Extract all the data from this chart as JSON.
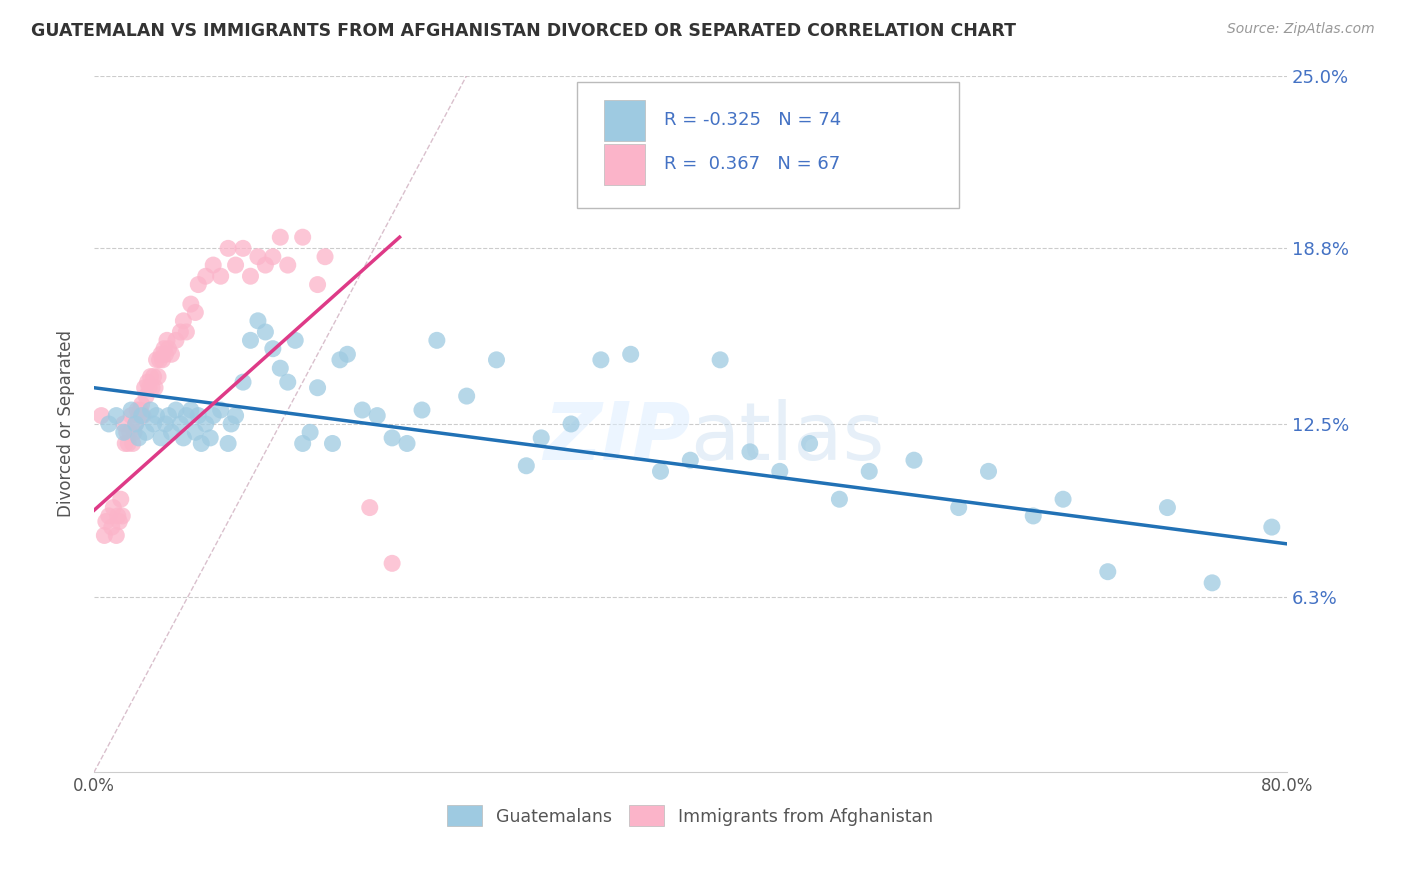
{
  "title": "GUATEMALAN VS IMMIGRANTS FROM AFGHANISTAN DIVORCED OR SEPARATED CORRELATION CHART",
  "source": "Source: ZipAtlas.com",
  "ylabel": "Divorced or Separated",
  "xmin": 0.0,
  "xmax": 0.8,
  "ymin": 0.0,
  "ymax": 0.25,
  "yticks": [
    0.063,
    0.125,
    0.188,
    0.25
  ],
  "ytick_labels": [
    "6.3%",
    "12.5%",
    "18.8%",
    "25.0%"
  ],
  "xtick_labels_pos": [
    0.0,
    0.8
  ],
  "xtick_labels": [
    "0.0%",
    "80.0%"
  ],
  "blue_color": "#9ecae1",
  "pink_color": "#fbb4c9",
  "blue_line_color": "#2171b5",
  "pink_line_color": "#de3a87",
  "blue_R": -0.325,
  "blue_N": 74,
  "pink_R": 0.367,
  "pink_N": 67,
  "legend_label_blue": "Guatemalans",
  "legend_label_pink": "Immigrants from Afghanistan",
  "watermark_zip": "ZIP",
  "watermark_atlas": "atlas",
  "blue_trend_x": [
    0.0,
    0.8
  ],
  "blue_trend_y": [
    0.138,
    0.082
  ],
  "pink_trend_x": [
    0.0,
    0.205
  ],
  "pink_trend_y": [
    0.094,
    0.192
  ],
  "ref_line_x": [
    0.0,
    0.25
  ],
  "ref_line_y": [
    0.0,
    0.25
  ],
  "blue_scatter_x": [
    0.01,
    0.015,
    0.02,
    0.025,
    0.028,
    0.03,
    0.032,
    0.035,
    0.038,
    0.04,
    0.042,
    0.045,
    0.048,
    0.05,
    0.052,
    0.055,
    0.058,
    0.06,
    0.062,
    0.065,
    0.068,
    0.07,
    0.072,
    0.075,
    0.078,
    0.08,
    0.085,
    0.09,
    0.092,
    0.095,
    0.1,
    0.105,
    0.11,
    0.115,
    0.12,
    0.125,
    0.13,
    0.135,
    0.14,
    0.145,
    0.15,
    0.16,
    0.165,
    0.17,
    0.18,
    0.19,
    0.2,
    0.21,
    0.22,
    0.23,
    0.25,
    0.27,
    0.29,
    0.3,
    0.32,
    0.34,
    0.36,
    0.38,
    0.4,
    0.42,
    0.44,
    0.46,
    0.48,
    0.5,
    0.52,
    0.55,
    0.58,
    0.6,
    0.63,
    0.65,
    0.68,
    0.72,
    0.75,
    0.79
  ],
  "blue_scatter_y": [
    0.125,
    0.128,
    0.122,
    0.13,
    0.125,
    0.12,
    0.128,
    0.122,
    0.13,
    0.125,
    0.128,
    0.12,
    0.125,
    0.128,
    0.122,
    0.13,
    0.125,
    0.12,
    0.128,
    0.13,
    0.122,
    0.128,
    0.118,
    0.125,
    0.12,
    0.128,
    0.13,
    0.118,
    0.125,
    0.128,
    0.14,
    0.155,
    0.162,
    0.158,
    0.152,
    0.145,
    0.14,
    0.155,
    0.118,
    0.122,
    0.138,
    0.118,
    0.148,
    0.15,
    0.13,
    0.128,
    0.12,
    0.118,
    0.13,
    0.155,
    0.135,
    0.148,
    0.11,
    0.12,
    0.125,
    0.148,
    0.15,
    0.108,
    0.112,
    0.148,
    0.115,
    0.108,
    0.118,
    0.098,
    0.108,
    0.112,
    0.095,
    0.108,
    0.092,
    0.098,
    0.072,
    0.095,
    0.068,
    0.088
  ],
  "pink_scatter_x": [
    0.005,
    0.007,
    0.008,
    0.01,
    0.012,
    0.013,
    0.015,
    0.016,
    0.017,
    0.018,
    0.019,
    0.02,
    0.021,
    0.022,
    0.023,
    0.024,
    0.025,
    0.026,
    0.027,
    0.028,
    0.029,
    0.03,
    0.031,
    0.032,
    0.033,
    0.034,
    0.035,
    0.036,
    0.037,
    0.038,
    0.039,
    0.04,
    0.041,
    0.042,
    0.043,
    0.044,
    0.045,
    0.046,
    0.047,
    0.048,
    0.049,
    0.05,
    0.052,
    0.055,
    0.058,
    0.06,
    0.062,
    0.065,
    0.068,
    0.07,
    0.075,
    0.08,
    0.085,
    0.09,
    0.095,
    0.1,
    0.105,
    0.11,
    0.115,
    0.12,
    0.125,
    0.13,
    0.14,
    0.15,
    0.155,
    0.185,
    0.2
  ],
  "pink_scatter_y": [
    0.128,
    0.085,
    0.09,
    0.092,
    0.088,
    0.095,
    0.085,
    0.092,
    0.09,
    0.098,
    0.092,
    0.125,
    0.118,
    0.122,
    0.118,
    0.122,
    0.128,
    0.118,
    0.122,
    0.125,
    0.13,
    0.128,
    0.13,
    0.132,
    0.128,
    0.138,
    0.135,
    0.14,
    0.138,
    0.142,
    0.138,
    0.142,
    0.138,
    0.148,
    0.142,
    0.148,
    0.15,
    0.148,
    0.152,
    0.15,
    0.155,
    0.152,
    0.15,
    0.155,
    0.158,
    0.162,
    0.158,
    0.168,
    0.165,
    0.175,
    0.178,
    0.182,
    0.178,
    0.188,
    0.182,
    0.188,
    0.178,
    0.185,
    0.182,
    0.185,
    0.192,
    0.182,
    0.192,
    0.175,
    0.185,
    0.095,
    0.075
  ]
}
